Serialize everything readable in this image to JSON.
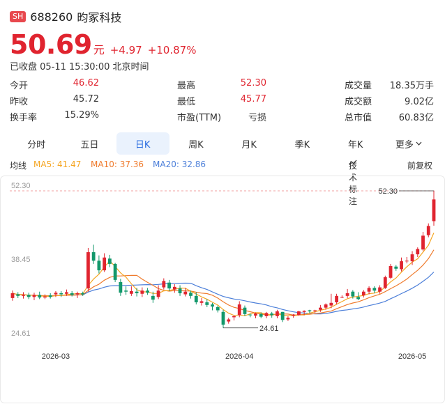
{
  "stock": {
    "exchange": "SH",
    "code": "688260",
    "name": "昀冢科技",
    "price": "50.69",
    "unit": "元",
    "change": "+4.97",
    "change_pct": "+10.87%",
    "status": "已收盘 05-11 15:30:00 北京时间"
  },
  "stats": [
    [
      {
        "label": "今开",
        "value": "46.62",
        "color": "red"
      },
      {
        "label": "最高",
        "value": "52.30",
        "color": "red"
      },
      {
        "label": "成交量",
        "value": "18.35万手",
        "color": "dark"
      }
    ],
    [
      {
        "label": "昨收",
        "value": "45.72",
        "color": "dark"
      },
      {
        "label": "最低",
        "value": "45.77",
        "color": "red"
      },
      {
        "label": "成交额",
        "value": "9.02亿",
        "color": "dark"
      }
    ],
    [
      {
        "label": "换手率",
        "value": "15.29%",
        "color": "dark"
      },
      {
        "label": "市盈(TTM)",
        "value": "亏损",
        "color": "dark"
      },
      {
        "label": "总市值",
        "value": "60.83亿",
        "color": "dark"
      }
    ]
  ],
  "tabs": [
    "分时",
    "五日",
    "日K",
    "周K",
    "月K",
    "季K",
    "年K",
    "更多"
  ],
  "active_tab": "日K",
  "indicators": {
    "label": "均线",
    "ma5": "MA5: 41.47",
    "ma10": "MA10: 37.36",
    "ma20": "MA20: 32.86",
    "tech": "技术标注",
    "adjust": "前复权"
  },
  "colors": {
    "up": "#e0242f",
    "down": "#12986b",
    "ma5": "#f5a623",
    "ma10": "#ef7b2d",
    "ma20": "#4c7fd9"
  },
  "chart_data": {
    "type": "candlestick",
    "y_tick_labels": [
      "52.30",
      "38.45",
      "24.61"
    ],
    "x_tick_labels": [
      "2026-03",
      "2026-04",
      "2026-05"
    ],
    "max_label": "52.30",
    "min_label": "24.61",
    "ylim": [
      24.61,
      52.3
    ],
    "candles": [
      [
        32.2,
        33.1,
        31.7,
        33.6
      ],
      [
        32.9,
        32.6,
        32.2,
        33.3
      ],
      [
        32.6,
        32.8,
        32.1,
        33.3
      ],
      [
        32.8,
        32.4,
        32.0,
        33.2
      ],
      [
        32.4,
        32.8,
        31.8,
        33.2
      ],
      [
        32.8,
        32.3,
        32.0,
        33.4
      ],
      [
        32.3,
        32.5,
        32.0,
        32.9
      ],
      [
        32.7,
        32.4,
        32.1,
        33.1
      ],
      [
        32.9,
        33.2,
        32.4,
        33.5
      ],
      [
        33.1,
        32.9,
        32.4,
        33.5
      ],
      [
        33.0,
        33.3,
        32.6,
        33.8
      ],
      [
        33.1,
        32.8,
        32.5,
        33.5
      ],
      [
        32.9,
        33.1,
        32.2,
        33.4
      ],
      [
        33.1,
        32.9,
        32.6,
        33.4
      ],
      [
        34.0,
        40.8,
        33.4,
        41.6
      ],
      [
        40.8,
        39.2,
        38.6,
        42.2
      ],
      [
        39.2,
        37.4,
        36.8,
        40.2
      ],
      [
        37.4,
        39.8,
        37.1,
        40.6
      ],
      [
        39.6,
        38.6,
        38.0,
        40.3
      ],
      [
        38.6,
        35.6,
        35.2,
        38.8
      ],
      [
        35.2,
        33.2,
        32.6,
        35.8
      ],
      [
        33.6,
        33.4,
        32.8,
        34.4
      ],
      [
        33.0,
        33.5,
        32.6,
        34.4
      ],
      [
        33.4,
        33.1,
        32.5,
        34.1
      ],
      [
        33.0,
        33.6,
        32.4,
        34.2
      ],
      [
        33.6,
        33.2,
        32.8,
        34.1
      ],
      [
        32.6,
        31.9,
        31.3,
        33.4
      ],
      [
        32.4,
        33.6,
        32.0,
        34.6
      ],
      [
        34.2,
        35.4,
        33.8,
        35.9
      ],
      [
        35.1,
        34.0,
        33.5,
        35.6
      ],
      [
        33.8,
        34.3,
        33.2,
        34.8
      ],
      [
        34.0,
        33.1,
        32.6,
        34.6
      ],
      [
        32.9,
        33.4,
        32.5,
        34.1
      ],
      [
        33.2,
        32.6,
        32.1,
        33.6
      ],
      [
        32.6,
        31.4,
        31.0,
        33.3
      ],
      [
        31.3,
        31.6,
        30.8,
        32.2
      ],
      [
        31.4,
        30.9,
        30.5,
        32.0
      ],
      [
        31.0,
        30.6,
        29.9,
        31.3
      ],
      [
        30.5,
        29.9,
        29.5,
        30.8
      ],
      [
        29.6,
        27.2,
        26.6,
        30.0
      ],
      [
        27.8,
        28.2,
        27.4,
        28.5
      ],
      [
        28.6,
        28.8,
        28.0,
        29.0
      ],
      [
        29.0,
        31.0,
        28.6,
        31.6
      ],
      [
        30.4,
        29.2,
        28.8,
        30.8
      ],
      [
        29.1,
        29.0,
        28.6,
        29.3
      ],
      [
        28.9,
        29.3,
        28.4,
        29.5
      ],
      [
        29.2,
        28.7,
        28.4,
        29.5
      ],
      [
        28.8,
        29.4,
        28.4,
        29.6
      ],
      [
        29.3,
        29.0,
        28.5,
        29.6
      ],
      [
        28.8,
        29.7,
        28.4,
        30.0
      ],
      [
        29.6,
        28.1,
        27.7,
        29.6
      ],
      [
        28.2,
        28.5,
        27.9,
        28.8
      ],
      [
        28.9,
        29.1,
        28.5,
        29.2
      ],
      [
        29.0,
        29.7,
        28.9,
        29.8
      ],
      [
        29.6,
        29.8,
        29.0,
        29.9
      ],
      [
        29.9,
        29.7,
        29.4,
        30.0
      ],
      [
        29.8,
        29.9,
        29.4,
        30.0
      ],
      [
        30.0,
        30.4,
        29.6,
        30.9
      ],
      [
        30.4,
        31.0,
        30.0,
        31.2
      ],
      [
        30.8,
        31.3,
        30.3,
        33.0
      ],
      [
        31.4,
        32.6,
        31.0,
        33.0
      ],
      [
        32.4,
        32.4,
        32.2,
        32.7
      ],
      [
        32.6,
        33.1,
        32.2,
        33.9
      ],
      [
        33.4,
        32.5,
        32.1,
        33.7
      ],
      [
        32.4,
        32.0,
        31.8,
        33.3
      ],
      [
        32.7,
        33.4,
        32.3,
        33.7
      ],
      [
        33.4,
        34.1,
        32.9,
        34.4
      ],
      [
        34.1,
        33.6,
        33.1,
        34.4
      ],
      [
        33.4,
        34.2,
        33.0,
        34.6
      ],
      [
        34.1,
        36.1,
        33.9,
        36.4
      ],
      [
        36.0,
        38.2,
        35.8,
        38.6
      ],
      [
        38.1,
        37.7,
        37.3,
        38.4
      ],
      [
        37.6,
        39.1,
        37.2,
        39.8
      ],
      [
        39.2,
        39.2,
        38.7,
        39.9
      ],
      [
        39.1,
        40.4,
        38.4,
        41.0
      ],
      [
        40.4,
        41.4,
        39.9,
        41.7
      ],
      [
        41.3,
        43.9,
        41.0,
        44.6
      ],
      [
        44.0,
        45.72,
        43.6,
        46.2
      ],
      [
        46.62,
        50.69,
        45.77,
        52.3
      ]
    ]
  }
}
